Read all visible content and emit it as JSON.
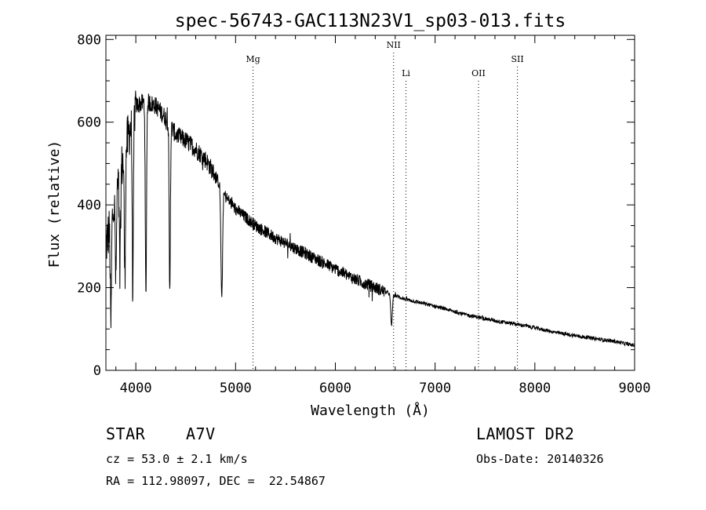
{
  "chart_data": {
    "type": "line",
    "title": "spec-56743-GAC113N23V1_sp03-013.fits",
    "xlabel": "Wavelength (Å)",
    "ylabel": "Flux (relative)",
    "xlim": [
      3700,
      9000
    ],
    "ylim": [
      0,
      810
    ],
    "x_ticks": [
      4000,
      5000,
      6000,
      7000,
      8000,
      9000
    ],
    "y_ticks": [
      0,
      200,
      400,
      600,
      800
    ],
    "grid": false,
    "line_color": "#000000",
    "continuum": {
      "x": [
        3700,
        3800,
        3900,
        4000,
        4100,
        4200,
        4300,
        4400,
        4500,
        4600,
        4700,
        4800,
        4900,
        5000,
        5200,
        5400,
        5600,
        5800,
        6000,
        6200,
        6400,
        6550,
        6700,
        7000,
        7300,
        7600,
        7900,
        8200,
        8500,
        8800,
        9000
      ],
      "y": [
        300,
        420,
        540,
        640,
        650,
        640,
        610,
        570,
        555,
        535,
        510,
        470,
        420,
        390,
        350,
        320,
        295,
        270,
        245,
        220,
        200,
        185,
        172,
        155,
        135,
        120,
        108,
        92,
        80,
        70,
        60
      ]
    },
    "absorption_features": [
      {
        "x": 3750,
        "depth": 250
      },
      {
        "x": 3800,
        "depth": 200
      },
      {
        "x": 3840,
        "depth": 220
      },
      {
        "x": 3890,
        "depth": 300
      },
      {
        "x": 3970,
        "depth": 420
      },
      {
        "x": 4101,
        "depth": 480
      },
      {
        "x": 4340,
        "depth": 410
      },
      {
        "x": 4861,
        "depth": 270
      },
      {
        "x": 6563,
        "depth": 75
      }
    ],
    "line_markers": [
      {
        "label": "Mg",
        "x": 5175
      },
      {
        "label": "NII",
        "x": 6584
      },
      {
        "label": "Li",
        "x": 6708
      },
      {
        "label": "OII",
        "x": 7435
      },
      {
        "label": "SII",
        "x": 7825
      }
    ]
  },
  "info": {
    "object_class": "STAR",
    "subclass": "A7V",
    "survey": "LAMOST DR2",
    "cz": "cz = 53.0 ± 2.1 km/s",
    "obs_date": "Obs-Date: 20140326",
    "coords": "RA = 112.98097, DEC =  22.54867"
  }
}
